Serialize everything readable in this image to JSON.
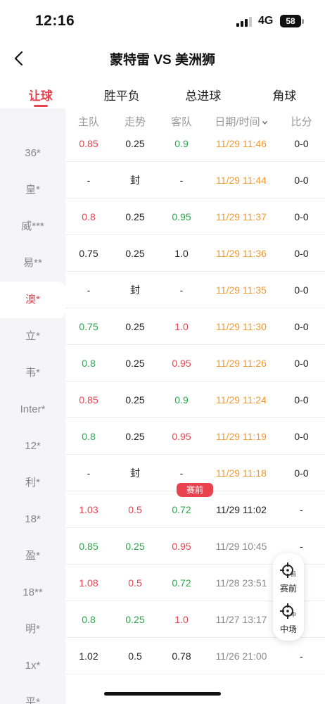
{
  "status_bar": {
    "time": "12:16",
    "network": "4G",
    "battery": "58"
  },
  "header": {
    "title": "蒙特雷 VS 美洲狮"
  },
  "tabs": [
    {
      "label": "让球",
      "active": true
    },
    {
      "label": "胜平负",
      "active": false
    },
    {
      "label": "总进球",
      "active": false
    },
    {
      "label": "角球",
      "active": false
    }
  ],
  "sidebar": {
    "items": [
      {
        "label": "36*"
      },
      {
        "label": "皇*"
      },
      {
        "label": "威***"
      },
      {
        "label": "易**"
      },
      {
        "label": "澳*",
        "active": true
      },
      {
        "label": "立*"
      },
      {
        "label": "韦*"
      },
      {
        "label": "Inter*"
      },
      {
        "label": "12*"
      },
      {
        "label": "利*"
      },
      {
        "label": "18*"
      },
      {
        "label": "盈*"
      },
      {
        "label": "18**"
      },
      {
        "label": "明*"
      },
      {
        "label": "1x*"
      },
      {
        "label": "平*"
      }
    ]
  },
  "table": {
    "headers": {
      "home": "主队",
      "trend": "走势",
      "away": "客队",
      "datetime": "日期/时间",
      "score": "比分"
    },
    "pre_match_badge": "赛前",
    "rows": [
      {
        "home": "0.85",
        "home_color": "red",
        "trend": "0.25",
        "trend_color": "black",
        "away": "0.9",
        "away_color": "green",
        "time": "11/29 11:46",
        "time_color": "orange",
        "score": "0-0"
      },
      {
        "home": "-",
        "home_color": "black",
        "trend": "封",
        "trend_color": "black",
        "away": "-",
        "away_color": "black",
        "time": "11/29 11:44",
        "time_color": "orange",
        "score": "0-0"
      },
      {
        "home": "0.8",
        "home_color": "red",
        "trend": "0.25",
        "trend_color": "black",
        "away": "0.95",
        "away_color": "green",
        "time": "11/29 11:37",
        "time_color": "orange",
        "score": "0-0"
      },
      {
        "home": "0.75",
        "home_color": "black",
        "trend": "0.25",
        "trend_color": "black",
        "away": "1.0",
        "away_color": "black",
        "time": "11/29 11:36",
        "time_color": "orange",
        "score": "0-0"
      },
      {
        "home": "-",
        "home_color": "black",
        "trend": "封",
        "trend_color": "black",
        "away": "-",
        "away_color": "black",
        "time": "11/29 11:35",
        "time_color": "orange",
        "score": "0-0"
      },
      {
        "home": "0.75",
        "home_color": "green",
        "trend": "0.25",
        "trend_color": "black",
        "away": "1.0",
        "away_color": "red",
        "time": "11/29 11:30",
        "time_color": "orange",
        "score": "0-0"
      },
      {
        "home": "0.8",
        "home_color": "green",
        "trend": "0.25",
        "trend_color": "black",
        "away": "0.95",
        "away_color": "red",
        "time": "11/29 11:26",
        "time_color": "orange",
        "score": "0-0"
      },
      {
        "home": "0.85",
        "home_color": "red",
        "trend": "0.25",
        "trend_color": "black",
        "away": "0.9",
        "away_color": "green",
        "time": "11/29 11:24",
        "time_color": "orange",
        "score": "0-0"
      },
      {
        "home": "0.8",
        "home_color": "green",
        "trend": "0.25",
        "trend_color": "black",
        "away": "0.95",
        "away_color": "red",
        "time": "11/29 11:19",
        "time_color": "orange",
        "score": "0-0"
      },
      {
        "home": "-",
        "home_color": "black",
        "trend": "封",
        "trend_color": "black",
        "away": "-",
        "away_color": "black",
        "time": "11/29 11:18",
        "time_color": "orange",
        "score": "0-0"
      },
      {
        "home": "1.03",
        "home_color": "red",
        "trend": "0.5",
        "trend_color": "red",
        "away": "0.72",
        "away_color": "green",
        "time": "11/29 11:02",
        "time_color": "black",
        "score": "-",
        "badge": true
      },
      {
        "home": "0.85",
        "home_color": "green",
        "trend": "0.25",
        "trend_color": "green",
        "away": "0.95",
        "away_color": "red",
        "time": "11/29 10:45",
        "time_color": "gray",
        "score": "-"
      },
      {
        "home": "1.08",
        "home_color": "red",
        "trend": "0.5",
        "trend_color": "red",
        "away": "0.72",
        "away_color": "green",
        "time": "11/28 23:51",
        "time_color": "gray",
        "score": "-"
      },
      {
        "home": "0.8",
        "home_color": "green",
        "trend": "0.25",
        "trend_color": "green",
        "away": "1.0",
        "away_color": "red",
        "time": "11/27 13:17",
        "time_color": "gray",
        "score": "-"
      },
      {
        "home": "1.02",
        "home_color": "black",
        "trend": "0.5",
        "trend_color": "black",
        "away": "0.78",
        "away_color": "black",
        "time": "11/26 21:00",
        "time_color": "gray",
        "score": "-"
      }
    ]
  },
  "float_buttons": {
    "pre_match": {
      "label": "赛前",
      "icon_sub": "前",
      "icon": "crosshair-icon"
    },
    "halftime": {
      "label": "中场",
      "icon_sub": "中",
      "icon": "crosshair-icon"
    }
  }
}
